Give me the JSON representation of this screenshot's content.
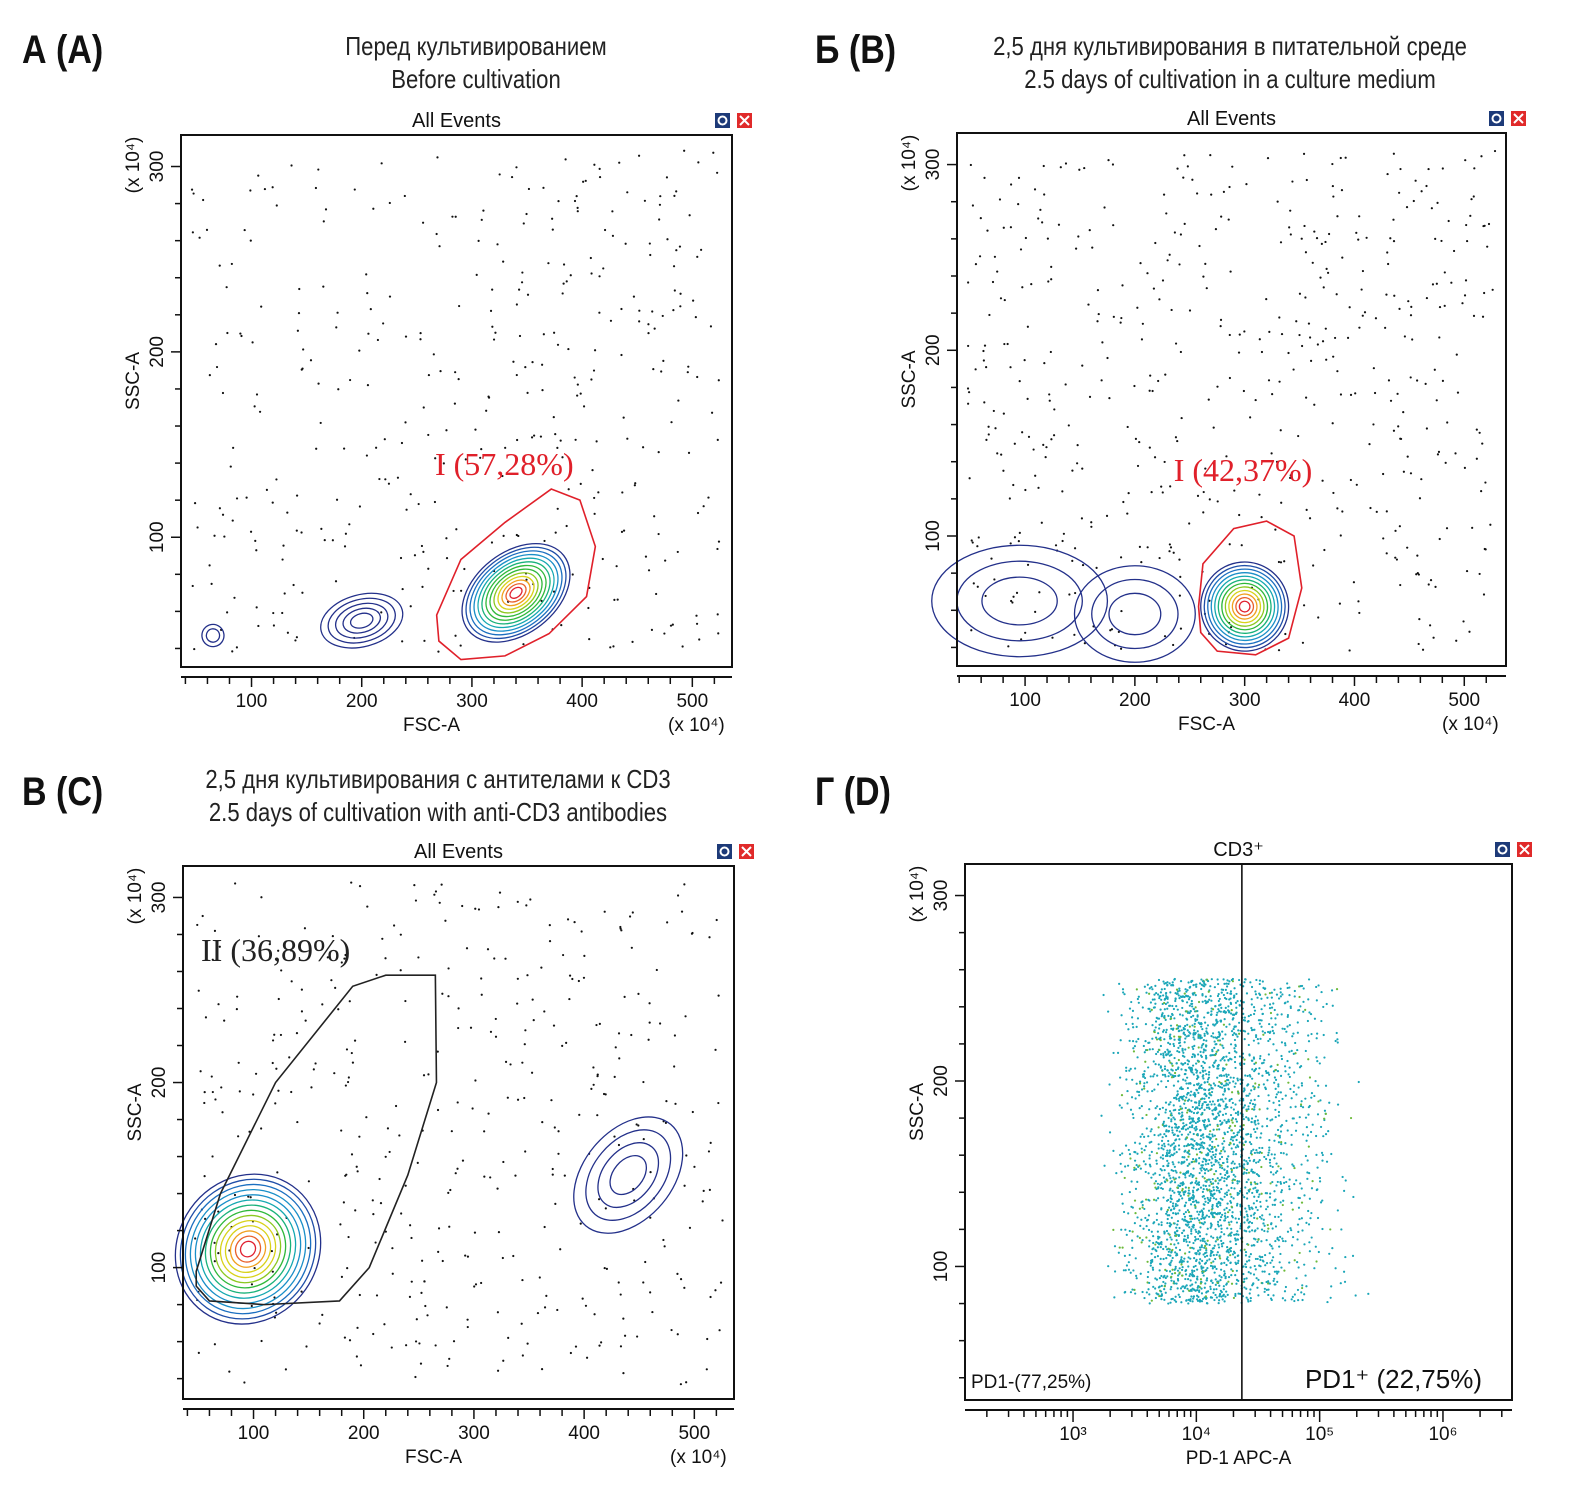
{
  "panels": [
    {
      "letter": "А (A)",
      "title_ru": "Перед культивированием",
      "title_en": "Before cultivation"
    },
    {
      "letter": "Б (B)",
      "title_ru": "2,5 дня культивирования в питательной среде",
      "title_en": "2.5 days of cultivation in a culture medium"
    },
    {
      "letter": "В (C)",
      "title_ru": "2,5 дня культивирования с антителами к CD3",
      "title_en": "2.5 days of cultivation with anti-CD3 antibodies"
    },
    {
      "letter": "Г (D)",
      "title_ru": "",
      "title_en": ""
    }
  ],
  "chart_data": [
    {
      "type": "scatter",
      "subtype": "contour",
      "title": "All Events",
      "xlabel": "FSC-A",
      "ylabel": "SSC-A",
      "x_multiplier": "(x 10⁴)",
      "y_multiplier": "(x 10⁴)",
      "xlim": [
        36,
        536
      ],
      "ylim": [
        30,
        317
      ],
      "xticks": [
        "100",
        "200",
        "300",
        "400",
        "500"
      ],
      "yticks": [
        "100",
        "200",
        "300"
      ],
      "gate": {
        "name": "I",
        "label": "I (57,28%)",
        "percent": 57.28,
        "color": "#e0202a",
        "polygon": [
          [
            268,
            58
          ],
          [
            290,
            88
          ],
          [
            330,
            108
          ],
          [
            372,
            126
          ],
          [
            398,
            120
          ],
          [
            412,
            95
          ],
          [
            404,
            68
          ],
          [
            370,
            48
          ],
          [
            330,
            36
          ],
          [
            290,
            34
          ],
          [
            270,
            44
          ]
        ]
      }
    },
    {
      "type": "scatter",
      "subtype": "contour",
      "title": "All Events",
      "xlabel": "FSC-A",
      "ylabel": "SSC-A",
      "x_multiplier": "(x 10⁴)",
      "y_multiplier": "(x 10⁴)",
      "xlim": [
        38,
        538
      ],
      "ylim": [
        30,
        317
      ],
      "xticks": [
        "100",
        "200",
        "300",
        "400",
        "500"
      ],
      "yticks": [
        "100",
        "200",
        "300"
      ],
      "gate": {
        "name": "I",
        "label": "I (42,37%)",
        "percent": 42.37,
        "color": "#e0202a",
        "polygon": [
          [
            258,
            62
          ],
          [
            262,
            85
          ],
          [
            290,
            104
          ],
          [
            320,
            108
          ],
          [
            345,
            100
          ],
          [
            352,
            72
          ],
          [
            340,
            45
          ],
          [
            310,
            36
          ],
          [
            275,
            38
          ],
          [
            260,
            48
          ]
        ]
      }
    },
    {
      "type": "scatter",
      "subtype": "contour",
      "title": "All Events",
      "xlabel": "FSC-A",
      "ylabel": "SSC-A",
      "x_multiplier": "(x 10⁴)",
      "y_multiplier": "(x 10⁴)",
      "xlim": [
        36,
        536
      ],
      "ylim": [
        29,
        317
      ],
      "xticks": [
        "100",
        "200",
        "300",
        "400",
        "500"
      ],
      "yticks": [
        "100",
        "200",
        "300"
      ],
      "gate": {
        "name": "II",
        "label": "II (36,89%)",
        "percent": 36.89,
        "color": "#222222",
        "polygon": [
          [
            48,
            98
          ],
          [
            70,
            140
          ],
          [
            120,
            200
          ],
          [
            190,
            252
          ],
          [
            220,
            258
          ],
          [
            265,
            258
          ],
          [
            266,
            200
          ],
          [
            240,
            150
          ],
          [
            205,
            100
          ],
          [
            178,
            82
          ],
          [
            110,
            80
          ],
          [
            60,
            82
          ],
          [
            48,
            90
          ]
        ]
      }
    },
    {
      "type": "scatter",
      "title": "CD3⁺",
      "xlabel": "PD-1 APC-A",
      "ylabel": "SSC-A",
      "y_multiplier": "(x 10⁴)",
      "xscale": "log",
      "xlim": [
        133,
        3630000
      ],
      "ylim": [
        28,
        317
      ],
      "xticks": [
        "10³",
        "10⁴",
        "10⁵",
        "10⁶"
      ],
      "yticks": [
        "100",
        "200",
        "300"
      ],
      "point_color": "#1aa6b8",
      "threshold": 23400,
      "regions": [
        {
          "label": "PD1-(77,25%)",
          "percent": 77.25
        },
        {
          "label": "PD1⁺ (22,75%)",
          "percent": 22.75
        }
      ]
    }
  ]
}
